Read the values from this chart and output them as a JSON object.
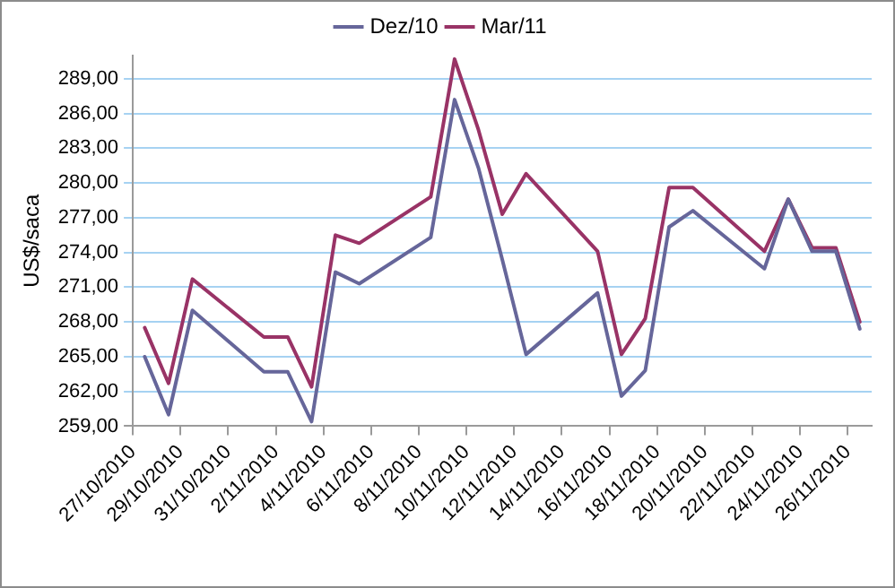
{
  "chart_data": {
    "type": "line",
    "ylabel": "US$/saca",
    "x": [
      "2010-10-27T12:00",
      "2010-10-28T12:00",
      "2010-10-29T12:00",
      "2010-11-01T12:00",
      "2010-11-02T12:00",
      "2010-11-03T12:00",
      "2010-11-04T12:00",
      "2010-11-05T12:00",
      "2010-11-08T12:00",
      "2010-11-09T12:00",
      "2010-11-10T12:00",
      "2010-11-11T12:00",
      "2010-11-12T12:00",
      "2010-11-15T12:00",
      "2010-11-16T12:00",
      "2010-11-17T12:00",
      "2010-11-18T12:00",
      "2010-11-19T12:00",
      "2010-11-22T12:00",
      "2010-11-23T12:00",
      "2010-11-24T12:00",
      "2010-11-25T12:00",
      "2010-11-26T12:00"
    ],
    "series": [
      {
        "name": "Dez/10",
        "color": "#66669a",
        "values": [
          265.0,
          260.0,
          269.0,
          263.7,
          263.7,
          259.4,
          272.3,
          271.3,
          275.3,
          287.2,
          281.3,
          273.4,
          265.2,
          270.5,
          261.6,
          263.8,
          276.2,
          277.6,
          272.6,
          278.6,
          274.1,
          274.1,
          267.4
        ]
      },
      {
        "name": "Mar/11",
        "color": "#993366",
        "values": [
          267.5,
          262.7,
          271.7,
          266.7,
          266.7,
          262.4,
          275.5,
          274.8,
          278.8,
          290.7,
          284.6,
          277.3,
          280.8,
          274.1,
          265.2,
          268.3,
          279.6,
          279.6,
          274.1,
          278.6,
          274.4,
          274.4,
          268.0
        ]
      }
    ],
    "xlim": [
      "2010-10-27",
      "2010-11-27"
    ],
    "xticks": [
      {
        "value": "2010-10-27",
        "label": "27/10/2010"
      },
      {
        "value": "2010-10-29",
        "label": "29/10/2010"
      },
      {
        "value": "2010-10-31",
        "label": "31/10/2010"
      },
      {
        "value": "2010-11-02",
        "label": "2/11/2010"
      },
      {
        "value": "2010-11-04",
        "label": "4/11/2010"
      },
      {
        "value": "2010-11-06",
        "label": "6/11/2010"
      },
      {
        "value": "2010-11-08",
        "label": "8/11/2010"
      },
      {
        "value": "2010-11-10",
        "label": "10/11/2010"
      },
      {
        "value": "2010-11-12",
        "label": "12/11/2010"
      },
      {
        "value": "2010-11-14",
        "label": "14/11/2010"
      },
      {
        "value": "2010-11-16",
        "label": "16/11/2010"
      },
      {
        "value": "2010-11-18",
        "label": "18/11/2010"
      },
      {
        "value": "2010-11-20",
        "label": "20/11/2010"
      },
      {
        "value": "2010-11-22",
        "label": "22/11/2010"
      },
      {
        "value": "2010-11-24",
        "label": "24/11/2010"
      },
      {
        "value": "2010-11-26",
        "label": "26/11/2010"
      }
    ],
    "ylim": [
      259,
      291
    ],
    "yticks": [
      {
        "value": 259,
        "label": "259,00"
      },
      {
        "value": 262,
        "label": "262,00"
      },
      {
        "value": 265,
        "label": "265,00"
      },
      {
        "value": 268,
        "label": "268,00"
      },
      {
        "value": 271,
        "label": "271,00"
      },
      {
        "value": 274,
        "label": "274,00"
      },
      {
        "value": 277,
        "label": "277,00"
      },
      {
        "value": 280,
        "label": "280,00"
      },
      {
        "value": 283,
        "label": "283,00"
      },
      {
        "value": 286,
        "label": "286,00"
      },
      {
        "value": 289,
        "label": "289,00"
      }
    ],
    "grid": "y",
    "legend": "top",
    "marker": "none",
    "line_style": "solid"
  }
}
